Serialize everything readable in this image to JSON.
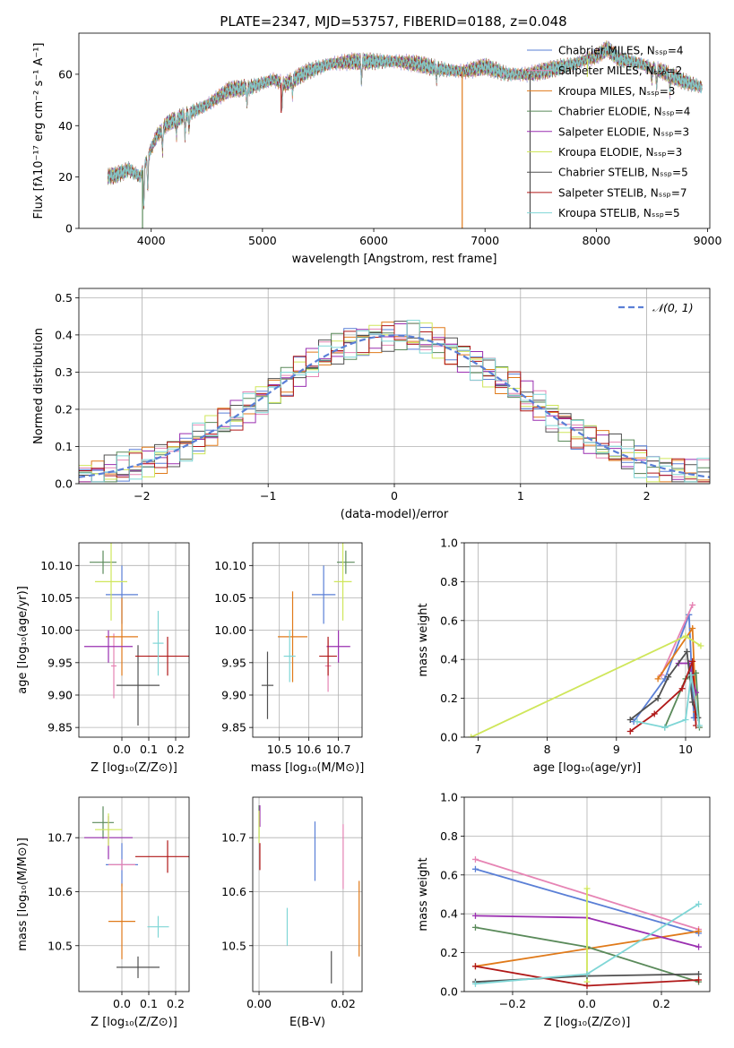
{
  "figure_title": "PLATE=2347, MJD=53757, FIBERID=0188, z=0.048",
  "colors": {
    "Chabrier MILES": "#5a7fd6",
    "Salpeter MILES": "#e684b4",
    "Kroupa MILES": "#e07a1a",
    "Chabrier ELODIE": "#5a8a5a",
    "Salpeter ELODIE": "#9a2fb0",
    "Kroupa ELODIE": "#cfe65a",
    "Chabrier STELIB": "#505050",
    "Salpeter STELIB": "#b01818",
    "Kroupa STELIB": "#7fd6d6",
    "gaussian": "#5a7fd6",
    "grid": "#b0b0b0"
  },
  "chart_data": [
    {
      "id": "spectrum",
      "type": "line",
      "title": "PLATE=2347, MJD=53757, FIBERID=0188, z=0.048",
      "xlabel": "wavelength [Angstrom, rest frame]",
      "ylabel": "Flux [fλ10⁻¹⁷ erg cm⁻² s⁻¹ A⁻¹]",
      "xlim": [
        3350,
        9020
      ],
      "ylim": [
        0,
        76
      ],
      "xticks": [
        4000,
        5000,
        6000,
        7000,
        8000,
        9000
      ],
      "yticks": [
        0,
        20,
        40,
        60
      ],
      "grid": false,
      "legend_position": "top-right",
      "legend": [
        "Chabrier MILES, Nₛₛₚ=4",
        "Salpeter MILES, Nₛₛₚ=2",
        "Kroupa MILES, Nₛₛₚ=3",
        "Chabrier ELODIE, Nₛₛₚ=4",
        "Salpeter ELODIE, Nₛₛₚ=3",
        "Kroupa ELODIE, Nₛₛₚ=3",
        "Chabrier STELIB, Nₛₛₚ=5",
        "Salpeter STELIB, Nₛₛₚ=7",
        "Kroupa STELIB, Nₛₛₚ=5"
      ],
      "continuum": [
        [
          3600,
          20
        ],
        [
          3700,
          21
        ],
        [
          3800,
          23
        ],
        [
          3900,
          20
        ],
        [
          3950,
          26
        ],
        [
          4050,
          36
        ],
        [
          4150,
          41
        ],
        [
          4300,
          44
        ],
        [
          4500,
          48
        ],
        [
          4700,
          54
        ],
        [
          4900,
          55
        ],
        [
          5100,
          58
        ],
        [
          5200,
          56
        ],
        [
          5400,
          61
        ],
        [
          5600,
          64
        ],
        [
          5800,
          65
        ],
        [
          6000,
          65
        ],
        [
          6200,
          65
        ],
        [
          6400,
          64
        ],
        [
          6600,
          62
        ],
        [
          6800,
          61
        ],
        [
          7000,
          63
        ],
        [
          7200,
          60
        ],
        [
          7400,
          60
        ],
        [
          7600,
          62
        ],
        [
          7800,
          64
        ],
        [
          8000,
          67
        ],
        [
          8100,
          70
        ],
        [
          8200,
          66
        ],
        [
          8400,
          64
        ],
        [
          8600,
          61
        ],
        [
          8800,
          57
        ],
        [
          8950,
          55
        ]
      ],
      "absorption_features": [
        [
          3934,
          15
        ],
        [
          3969,
          12
        ],
        [
          4102,
          8
        ],
        [
          4227,
          6
        ],
        [
          4305,
          8
        ],
        [
          4341,
          6
        ],
        [
          4861,
          6
        ],
        [
          5175,
          10
        ],
        [
          5270,
          5
        ],
        [
          5890,
          8
        ],
        [
          6563,
          4
        ],
        [
          8498,
          5
        ],
        [
          8542,
          7
        ],
        [
          8662,
          6
        ]
      ],
      "spikes": [
        [
          3922,
          0
        ],
        [
          5168,
          45
        ],
        [
          6795,
          0
        ],
        [
          7405,
          0
        ],
        [
          7165,
          59
        ],
        [
          7920,
          59
        ]
      ]
    },
    {
      "id": "residuals",
      "type": "histogram",
      "xlabel": "(data-model)/error",
      "ylabel": "Normed distribution",
      "xlim": [
        -2.5,
        2.5
      ],
      "ylim": [
        0,
        0.525
      ],
      "xticks": [
        -2,
        -1,
        0,
        1,
        2
      ],
      "yticks": [
        0.0,
        0.1,
        0.2,
        0.3,
        0.4,
        0.5
      ],
      "grid": true,
      "legend_position": "top-right",
      "legend": [
        "𝒩(0, 1)"
      ],
      "bin_width": 0.1,
      "reference_curve": "normal(0,1)"
    },
    {
      "id": "z-age",
      "type": "scatter",
      "xlabel": "Z [log₁₀(Z/Z⊙)]",
      "ylabel": "age  [log₁₀(age/yr)]",
      "xlim": [
        -0.16,
        0.25
      ],
      "ylim": [
        9.835,
        10.135
      ],
      "xticks": [
        0.0,
        0.1,
        0.2
      ],
      "yticks": [
        9.85,
        9.9,
        9.95,
        10.0,
        10.05,
        10.1
      ],
      "grid": true,
      "points": [
        {
          "model": "Chabrier MILES",
          "x": 0.0,
          "y": 10.055,
          "xerr": 0.06,
          "yerr": 0.045
        },
        {
          "model": "Salpeter MILES",
          "x": -0.03,
          "y": 9.945,
          "xerr": 0.01,
          "yerr": 0.05
        },
        {
          "model": "Kroupa MILES",
          "x": 0.0,
          "y": 9.99,
          "xerr": 0.06,
          "yerr": 0.06
        },
        {
          "model": "Chabrier ELODIE",
          "x": -0.07,
          "y": 10.105,
          "xerr": 0.05,
          "yerr": 0.018
        },
        {
          "model": "Salpeter ELODIE",
          "x": -0.05,
          "y": 9.975,
          "xerr": 0.09,
          "yerr": 0.025
        },
        {
          "model": "Kroupa ELODIE",
          "x": -0.04,
          "y": 10.075,
          "xerr": 0.06,
          "yerr": 0.06
        },
        {
          "model": "Chabrier STELIB",
          "x": 0.06,
          "y": 9.915,
          "xerr": 0.08,
          "yerr": 0.062
        },
        {
          "model": "Salpeter STELIB",
          "x": 0.17,
          "y": 9.96,
          "xerr": 0.12,
          "yerr": 0.03
        },
        {
          "model": "Kroupa STELIB",
          "x": 0.135,
          "y": 9.98,
          "xerr": 0.02,
          "yerr": 0.05
        }
      ]
    },
    {
      "id": "mass-age",
      "type": "scatter",
      "xlabel": "mass [log₁₀(M/M⊙)]",
      "ylabel": "",
      "xlim": [
        10.41,
        10.78
      ],
      "ylim": [
        9.835,
        10.135
      ],
      "xticks": [
        10.5,
        10.6,
        10.7
      ],
      "yticks": [
        9.85,
        9.9,
        9.95,
        10.0,
        10.05,
        10.1
      ],
      "grid": true,
      "points": [
        {
          "model": "Chabrier MILES",
          "x": 10.65,
          "y": 10.055,
          "xerr": 0.04,
          "yerr": 0.045
        },
        {
          "model": "Salpeter MILES",
          "x": 10.665,
          "y": 9.945,
          "xerr": 0.01,
          "yerr": 0.04
        },
        {
          "model": "Kroupa MILES",
          "x": 10.545,
          "y": 9.99,
          "xerr": 0.05,
          "yerr": 0.07
        },
        {
          "model": "Chabrier ELODIE",
          "x": 10.725,
          "y": 10.105,
          "xerr": 0.03,
          "yerr": 0.018
        },
        {
          "model": "Salpeter ELODIE",
          "x": 10.7,
          "y": 9.975,
          "xerr": 0.04,
          "yerr": 0.025
        },
        {
          "model": "Kroupa ELODIE",
          "x": 10.715,
          "y": 10.075,
          "xerr": 0.03,
          "yerr": 0.06
        },
        {
          "model": "Chabrier STELIB",
          "x": 10.46,
          "y": 9.915,
          "xerr": 0.02,
          "yerr": 0.052
        },
        {
          "model": "Salpeter STELIB",
          "x": 10.665,
          "y": 9.96,
          "xerr": 0.03,
          "yerr": 0.03
        },
        {
          "model": "Kroupa STELIB",
          "x": 10.535,
          "y": 9.96,
          "xerr": 0.02,
          "yerr": 0.04
        }
      ]
    },
    {
      "id": "weight-age",
      "type": "line",
      "xlabel": "age  [log₁₀(age/yr)]",
      "ylabel": "mass weight",
      "xlim": [
        6.8,
        10.35
      ],
      "ylim": [
        0,
        1.0
      ],
      "xticks": [
        7,
        8,
        9,
        10
      ],
      "yticks": [
        0.0,
        0.2,
        0.4,
        0.6,
        0.8,
        1.0
      ],
      "grid": true,
      "series": [
        {
          "model": "Chabrier MILES",
          "points": [
            [
              9.25,
              0.08
            ],
            [
              9.7,
              0.3
            ],
            [
              10.05,
              0.63
            ],
            [
              10.12,
              0.1
            ]
          ]
        },
        {
          "model": "Salpeter MILES",
          "points": [
            [
              9.65,
              0.32
            ],
            [
              10.1,
              0.68
            ]
          ]
        },
        {
          "model": "Kroupa MILES",
          "points": [
            [
              9.6,
              0.3
            ],
            [
              10.1,
              0.56
            ],
            [
              10.15,
              0.13
            ]
          ]
        },
        {
          "model": "Chabrier ELODIE",
          "points": [
            [
              9.7,
              0.05
            ],
            [
              10.0,
              0.3
            ],
            [
              10.15,
              0.33
            ],
            [
              10.2,
              0.05
            ]
          ]
        },
        {
          "model": "Salpeter ELODIE",
          "points": [
            [
              9.9,
              0.38
            ],
            [
              10.05,
              0.38
            ],
            [
              10.15,
              0.23
            ]
          ]
        },
        {
          "model": "Kroupa ELODIE",
          "points": [
            [
              6.9,
              0.0
            ],
            [
              10.0,
              0.52
            ],
            [
              10.22,
              0.47
            ]
          ]
        },
        {
          "model": "Chabrier STELIB",
          "points": [
            [
              9.2,
              0.09
            ],
            [
              9.6,
              0.2
            ],
            [
              9.75,
              0.31
            ],
            [
              10.02,
              0.44
            ],
            [
              10.1,
              0.18
            ],
            [
              10.18,
              0.1
            ]
          ]
        },
        {
          "model": "Salpeter STELIB",
          "points": [
            [
              9.2,
              0.03
            ],
            [
              9.55,
              0.12
            ],
            [
              9.95,
              0.25
            ],
            [
              10.1,
              0.39
            ],
            [
              10.15,
              0.06
            ]
          ]
        },
        {
          "model": "Kroupa STELIB",
          "points": [
            [
              9.3,
              0.08
            ],
            [
              9.7,
              0.05
            ],
            [
              10.0,
              0.09
            ],
            [
              10.08,
              0.32
            ],
            [
              10.2,
              0.06
            ]
          ]
        }
      ]
    },
    {
      "id": "z-mass",
      "type": "scatter",
      "xlabel": "Z [log₁₀(Z/Z⊙)]",
      "ylabel": "mass [log₁₀(M/M⊙)]",
      "xlim": [
        -0.16,
        0.25
      ],
      "ylim": [
        10.415,
        10.775
      ],
      "xticks": [
        0.0,
        0.1,
        0.2
      ],
      "yticks": [
        10.5,
        10.6,
        10.7
      ],
      "grid": true,
      "points": [
        {
          "model": "Chabrier MILES",
          "x": 0.0,
          "y": 10.65,
          "xerr": 0.06,
          "yerr": 0.04
        },
        {
          "model": "Salpeter MILES",
          "x": 0.0,
          "y": 10.65,
          "xerr": 0.05,
          "yerr": 0.01
        },
        {
          "model": "Kroupa MILES",
          "x": 0.0,
          "y": 10.545,
          "xerr": 0.05,
          "yerr": 0.07
        },
        {
          "model": "Chabrier ELODIE",
          "x": -0.07,
          "y": 10.728,
          "xerr": 0.04,
          "yerr": 0.03
        },
        {
          "model": "Salpeter ELODIE",
          "x": -0.05,
          "y": 10.7,
          "xerr": 0.09,
          "yerr": 0.04
        },
        {
          "model": "Kroupa ELODIE",
          "x": -0.05,
          "y": 10.715,
          "xerr": 0.05,
          "yerr": 0.03
        },
        {
          "model": "Chabrier STELIB",
          "x": 0.06,
          "y": 10.46,
          "xerr": 0.08,
          "yerr": 0.02
        },
        {
          "model": "Salpeter STELIB",
          "x": 0.17,
          "y": 10.665,
          "xerr": 0.12,
          "yerr": 0.03
        },
        {
          "model": "Kroupa STELIB",
          "x": 0.135,
          "y": 10.535,
          "xerr": 0.04,
          "yerr": 0.02
        }
      ]
    },
    {
      "id": "ebv-mass",
      "type": "scatter",
      "xlabel": "E(B-V)",
      "ylabel": "",
      "xlim": [
        -0.0015,
        0.0245
      ],
      "ylim": [
        10.415,
        10.775
      ],
      "xticks": [
        0.0,
        0.02
      ],
      "yticks": [
        10.5,
        10.6,
        10.7
      ],
      "grid": true,
      "points": [
        {
          "model": "Chabrier MILES",
          "x": 0.0133,
          "y": 10.675,
          "xerr": 0,
          "yerr": 0.055
        },
        {
          "model": "Salpeter MILES",
          "x": 0.02,
          "y": 10.665,
          "xerr": 0,
          "yerr": 0.06
        },
        {
          "model": "Kroupa MILES",
          "x": 0.0238,
          "y": 10.55,
          "xerr": 0,
          "yerr": 0.07
        },
        {
          "model": "Chabrier ELODIE",
          "x": 0.0,
          "y": 10.73,
          "xerr": 0,
          "yerr": 0.03
        },
        {
          "model": "Salpeter ELODIE",
          "x": 0.0002,
          "y": 10.74,
          "xerr": 0,
          "yerr": 0.02
        },
        {
          "model": "Kroupa ELODIE",
          "x": 0.0,
          "y": 10.72,
          "xerr": 0,
          "yerr": 0.03
        },
        {
          "model": "Chabrier STELIB",
          "x": 0.0172,
          "y": 10.46,
          "xerr": 0,
          "yerr": 0.03
        },
        {
          "model": "Salpeter STELIB",
          "x": 0.0002,
          "y": 10.665,
          "xerr": 0,
          "yerr": 0.025
        },
        {
          "model": "Kroupa STELIB",
          "x": 0.0067,
          "y": 10.535,
          "xerr": 0,
          "yerr": 0.035
        }
      ]
    },
    {
      "id": "weight-z",
      "type": "line",
      "xlabel": "Z [log₁₀(Z/Z⊙)]",
      "ylabel": "mass weight",
      "xlim": [
        -0.33,
        0.33
      ],
      "ylim": [
        0,
        1.0
      ],
      "xticks": [
        -0.2,
        0.0,
        0.2
      ],
      "yticks": [
        0.0,
        0.2,
        0.4,
        0.6,
        0.8,
        1.0
      ],
      "grid": true,
      "series": [
        {
          "model": "Chabrier MILES",
          "points": [
            [
              -0.3,
              0.63
            ],
            [
              0.3,
              0.3
            ]
          ]
        },
        {
          "model": "Salpeter MILES",
          "points": [
            [
              -0.3,
              0.68
            ],
            [
              0.3,
              0.32
            ]
          ]
        },
        {
          "model": "Kroupa MILES",
          "points": [
            [
              -0.3,
              0.13
            ],
            [
              0.3,
              0.31
            ]
          ]
        },
        {
          "model": "Chabrier ELODIE",
          "points": [
            [
              -0.3,
              0.33
            ],
            [
              0.0,
              0.23
            ],
            [
              0.3,
              0.05
            ]
          ]
        },
        {
          "model": "Salpeter ELODIE",
          "points": [
            [
              -0.3,
              0.39
            ],
            [
              0.0,
              0.38
            ],
            [
              0.3,
              0.23
            ]
          ]
        },
        {
          "model": "Kroupa ELODIE",
          "points": [
            [
              0.0,
              0.53
            ],
            [
              0.0,
              0.05
            ]
          ]
        },
        {
          "model": "Chabrier STELIB",
          "points": [
            [
              -0.3,
              0.05
            ],
            [
              0.0,
              0.08
            ],
            [
              0.3,
              0.09
            ]
          ]
        },
        {
          "model": "Salpeter STELIB",
          "points": [
            [
              -0.3,
              0.13
            ],
            [
              0.0,
              0.03
            ],
            [
              0.3,
              0.06
            ]
          ]
        },
        {
          "model": "Kroupa STELIB",
          "points": [
            [
              -0.3,
              0.04
            ],
            [
              0.0,
              0.09
            ],
            [
              0.3,
              0.45
            ]
          ]
        }
      ]
    }
  ]
}
